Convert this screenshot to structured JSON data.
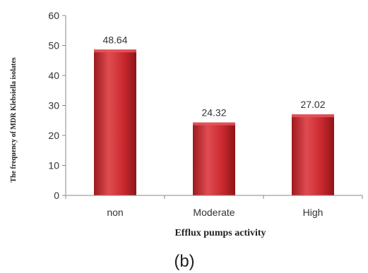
{
  "chart_data": {
    "type": "bar",
    "categories": [
      "non",
      "Moderate",
      "High"
    ],
    "values": [
      48.64,
      24.32,
      27.02
    ],
    "data_labels": [
      "48.64",
      "24.32",
      "27.02"
    ],
    "xlabel": "Efflux pumps activity",
    "ylabel": "The frequency of MDR Klebsiella isolates",
    "ylim": [
      0,
      60
    ],
    "yticks": [
      0,
      10,
      20,
      30,
      40,
      50,
      60
    ],
    "grid": false,
    "legend": "none",
    "bar_color": "#c0282d",
    "bar_highlight": "#e8555a",
    "bar_shadow": "#8e1418",
    "axis_color": "#888888"
  },
  "panel_label": "(b)"
}
